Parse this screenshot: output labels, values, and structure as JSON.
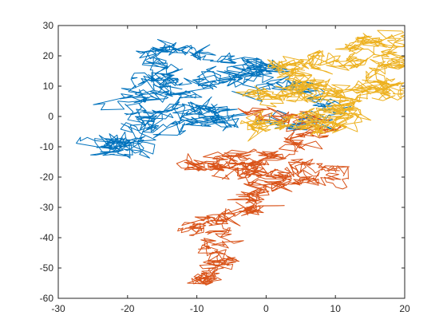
{
  "chart_data": {
    "type": "line",
    "title": "",
    "xlabel": "",
    "ylabel": "",
    "xlim": [
      -30,
      20
    ],
    "ylim": [
      -60,
      30
    ],
    "xticks": [
      -30,
      -20,
      -10,
      0,
      10,
      20
    ],
    "yticks": [
      -60,
      -50,
      -40,
      -30,
      -20,
      -10,
      0,
      10,
      20,
      30
    ],
    "xtick_labels": [
      "-30",
      "-20",
      "-10",
      "0",
      "10",
      "20"
    ],
    "ytick_labels": [
      "-60",
      "-50",
      "-40",
      "-30",
      "-20",
      "-10",
      "0",
      "10",
      "20",
      "30"
    ],
    "grid": false,
    "series": [
      {
        "color": "#0072bd",
        "anchors": [
          [
            0,
            0
          ],
          [
            2,
            -2
          ],
          [
            5,
            -3
          ],
          [
            8,
            -1
          ],
          [
            10,
            2
          ],
          [
            8,
            5
          ],
          [
            6,
            8
          ],
          [
            4,
            10
          ],
          [
            1,
            11
          ],
          [
            -2,
            9
          ],
          [
            -1,
            14
          ],
          [
            0,
            16
          ],
          [
            -3,
            15
          ],
          [
            -6,
            14
          ],
          [
            -8,
            12
          ],
          [
            -11,
            13
          ],
          [
            -14,
            14
          ],
          [
            -16,
            13
          ],
          [
            -14,
            9
          ],
          [
            -17,
            11
          ],
          [
            -19,
            12
          ],
          [
            -16,
            17
          ],
          [
            -17,
            20
          ],
          [
            -14,
            22
          ],
          [
            -15,
            24
          ],
          [
            -11,
            21
          ],
          [
            -8,
            19
          ],
          [
            -5,
            20
          ],
          [
            -2,
            17
          ],
          [
            0,
            18
          ],
          [
            -3,
            13
          ],
          [
            -6,
            11
          ],
          [
            -10,
            8
          ],
          [
            -13,
            9
          ],
          [
            -16,
            7
          ],
          [
            -19,
            6
          ],
          [
            -21,
            4
          ],
          [
            -18,
            2
          ],
          [
            -17,
            -1
          ],
          [
            -15,
            1
          ],
          [
            -13,
            3
          ],
          [
            -11,
            2
          ],
          [
            -9,
            3
          ],
          [
            -8,
            0
          ],
          [
            -6,
            1
          ],
          [
            -5,
            -1
          ],
          [
            -7,
            -3
          ],
          [
            -10,
            -2
          ],
          [
            -13,
            -3
          ],
          [
            -15,
            -5
          ],
          [
            -17,
            -3
          ],
          [
            -19,
            -6
          ],
          [
            -21,
            -8
          ],
          [
            -23,
            -9
          ],
          [
            -25,
            -9
          ],
          [
            -22,
            -10
          ],
          [
            -20,
            -9
          ],
          [
            -18,
            -11
          ],
          [
            -19,
            -13
          ],
          [
            -18,
            -8
          ]
        ],
        "seed": 17,
        "noise": 1.3
      },
      {
        "color": "#d95319",
        "anchors": [
          [
            -1,
            3
          ],
          [
            -1,
            0
          ],
          [
            2,
            -1
          ],
          [
            4,
            1
          ],
          [
            6,
            -1
          ],
          [
            8,
            -3
          ],
          [
            9,
            -5
          ],
          [
            7,
            -6
          ],
          [
            5,
            -7
          ],
          [
            4,
            -9
          ],
          [
            3,
            -11
          ],
          [
            1,
            -12
          ],
          [
            0,
            -14
          ],
          [
            -2,
            -15
          ],
          [
            -4,
            -13
          ],
          [
            -6,
            -14
          ],
          [
            -5,
            -13
          ],
          [
            -3,
            -16
          ],
          [
            -5,
            -17
          ],
          [
            -8,
            -16
          ],
          [
            -10,
            -15
          ],
          [
            -11,
            -16
          ],
          [
            -9,
            -17
          ],
          [
            -6,
            -18
          ],
          [
            -3,
            -19
          ],
          [
            -1,
            -18
          ],
          [
            1,
            -19
          ],
          [
            3,
            -19
          ],
          [
            5,
            -17
          ],
          [
            7,
            -16
          ],
          [
            9,
            -18
          ],
          [
            11,
            -19
          ],
          [
            9,
            -21
          ],
          [
            6,
            -20
          ],
          [
            4,
            -21
          ],
          [
            2,
            -22
          ],
          [
            1,
            -23
          ],
          [
            -1,
            -24
          ],
          [
            -1,
            -26
          ],
          [
            -3,
            -27
          ],
          [
            -2,
            -29
          ],
          [
            -1,
            -31
          ],
          [
            -3,
            -31
          ],
          [
            -5,
            -33
          ],
          [
            -6,
            -35
          ],
          [
            -7,
            -34
          ],
          [
            -9,
            -35
          ],
          [
            -11,
            -36
          ],
          [
            -8,
            -37
          ],
          [
            -6,
            -39
          ],
          [
            -7,
            -41
          ],
          [
            -8,
            -43
          ],
          [
            -7,
            -46
          ],
          [
            -6,
            -47
          ],
          [
            -5,
            -49
          ],
          [
            -7,
            -50
          ],
          [
            -8,
            -52
          ],
          [
            -9,
            -54
          ],
          [
            -10,
            -55
          ],
          [
            -8,
            -53
          ]
        ],
        "seed": 41,
        "noise": 1.1
      },
      {
        "color": "#edb120",
        "anchors": [
          [
            0,
            0
          ],
          [
            -1,
            -3
          ],
          [
            -2,
            -4
          ],
          [
            0,
            -2
          ],
          [
            2,
            -3
          ],
          [
            4,
            -2
          ],
          [
            6,
            0
          ],
          [
            8,
            1
          ],
          [
            10,
            2
          ],
          [
            12,
            1
          ],
          [
            13,
            -1
          ],
          [
            11,
            -3
          ],
          [
            9,
            -4
          ],
          [
            7,
            -5
          ],
          [
            6,
            -3
          ],
          [
            8,
            -2
          ],
          [
            10,
            0
          ],
          [
            12,
            3
          ],
          [
            11,
            5
          ],
          [
            9,
            7
          ],
          [
            7,
            6
          ],
          [
            5,
            8
          ],
          [
            4,
            10
          ],
          [
            6,
            11
          ],
          [
            4,
            13
          ],
          [
            5,
            15
          ],
          [
            3,
            17
          ],
          [
            1,
            18
          ],
          [
            3,
            17
          ],
          [
            6,
            18
          ],
          [
            8,
            19
          ],
          [
            10,
            18
          ],
          [
            11,
            16
          ],
          [
            13,
            18
          ],
          [
            14,
            21
          ],
          [
            12,
            23
          ],
          [
            14,
            25
          ],
          [
            16,
            24
          ],
          [
            18,
            26
          ],
          [
            19,
            25
          ],
          [
            17,
            22
          ],
          [
            19,
            20
          ],
          [
            18,
            18
          ],
          [
            16,
            16
          ],
          [
            15,
            14
          ],
          [
            16,
            11
          ],
          [
            18,
            10
          ],
          [
            19,
            9
          ],
          [
            17,
            7
          ],
          [
            15,
            9
          ],
          [
            14,
            7
          ],
          [
            12,
            8
          ],
          [
            10,
            9
          ],
          [
            8,
            10
          ],
          [
            6,
            11
          ],
          [
            4,
            9
          ],
          [
            2,
            8
          ],
          [
            0,
            7
          ],
          [
            -1,
            8
          ],
          [
            3,
            6
          ]
        ],
        "seed": 73,
        "noise": 1.2
      }
    ]
  }
}
